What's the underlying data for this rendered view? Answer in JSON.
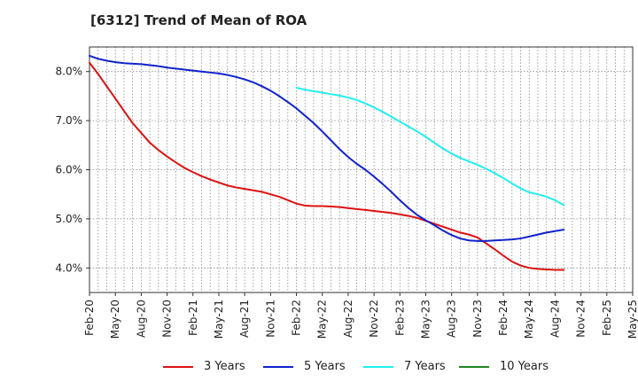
{
  "chart_data": {
    "type": "line",
    "title": "[6312]  Trend of Mean of ROA",
    "xlabel": "",
    "ylabel": "",
    "ylim": [
      3.5,
      8.5
    ],
    "grid": true,
    "legend_position": "bottom",
    "x_ticks": [
      "Feb-20",
      "May-20",
      "Aug-20",
      "Nov-20",
      "Feb-21",
      "May-21",
      "Aug-21",
      "Nov-21",
      "Feb-22",
      "May-22",
      "Aug-22",
      "Nov-22",
      "Feb-23",
      "May-23",
      "Aug-23",
      "Nov-23",
      "Feb-24",
      "May-24",
      "Aug-24",
      "Nov-24",
      "Feb-25",
      "May-25"
    ],
    "y_ticks": [
      "4.0%",
      "5.0%",
      "6.0%",
      "7.0%",
      "8.0%"
    ],
    "y_tick_values": [
      4.0,
      5.0,
      6.0,
      7.0,
      8.0
    ],
    "series": [
      {
        "name": "3 Years",
        "color": "#dd1111",
        "x_start": "Feb-20",
        "values": [
          8.18,
          7.95,
          7.7,
          7.45,
          7.2,
          6.95,
          6.75,
          6.55,
          6.4,
          6.27,
          6.15,
          6.04,
          5.95,
          5.87,
          5.8,
          5.74,
          5.68,
          5.64,
          5.61,
          5.58,
          5.55,
          5.5,
          5.45,
          5.38,
          5.31,
          5.27,
          5.26,
          5.26,
          5.25,
          5.24,
          5.22,
          5.2,
          5.18,
          5.16,
          5.14,
          5.12,
          5.09,
          5.06,
          5.02,
          4.96,
          4.9,
          4.84,
          4.78,
          4.72,
          4.68,
          4.62,
          4.5,
          4.38,
          4.25,
          4.13,
          4.05,
          4.0,
          3.98,
          3.97,
          3.96,
          3.96
        ]
      },
      {
        "name": "5 Years",
        "color": "#1122cc",
        "x_start": "Feb-20",
        "values": [
          8.32,
          8.26,
          8.22,
          8.19,
          8.17,
          8.16,
          8.15,
          8.13,
          8.11,
          8.08,
          8.06,
          8.04,
          8.02,
          8.0,
          7.98,
          7.96,
          7.93,
          7.89,
          7.84,
          7.78,
          7.7,
          7.61,
          7.5,
          7.38,
          7.25,
          7.1,
          6.95,
          6.78,
          6.6,
          6.42,
          6.26,
          6.12,
          6.0,
          5.86,
          5.71,
          5.55,
          5.38,
          5.22,
          5.08,
          4.97,
          4.87,
          4.76,
          4.67,
          4.6,
          4.56,
          4.55,
          4.55,
          4.56,
          4.57,
          4.58,
          4.6,
          4.64,
          4.68,
          4.72,
          4.75,
          4.78
        ]
      },
      {
        "name": "7 Years",
        "color": "#22eeee",
        "x_start": "Feb-22",
        "values": [
          7.67,
          7.63,
          7.6,
          7.57,
          7.54,
          7.51,
          7.47,
          7.42,
          7.35,
          7.27,
          7.18,
          7.08,
          6.98,
          6.88,
          6.78,
          6.67,
          6.55,
          6.43,
          6.33,
          6.24,
          6.17,
          6.1,
          6.02,
          5.93,
          5.83,
          5.72,
          5.62,
          5.54,
          5.5,
          5.45,
          5.38,
          5.28
        ]
      },
      {
        "name": "10 Years",
        "color": "#228822",
        "x_start": "Feb-20",
        "values": []
      }
    ]
  }
}
